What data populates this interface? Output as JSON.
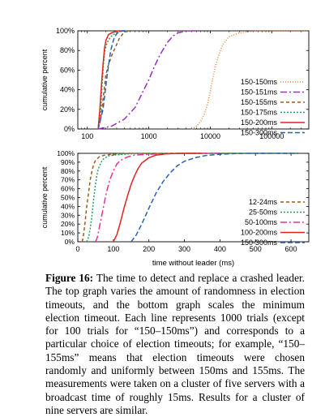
{
  "chart_data": [
    {
      "type": "line",
      "title": "",
      "xlabel": "",
      "ylabel": "cumulative percent",
      "xscale": "log",
      "xlim": [
        70,
        400000
      ],
      "ylim": [
        0,
        100
      ],
      "x_ticks": [
        "100",
        "1000",
        "10000",
        "100000"
      ],
      "y_ticks": [
        "0%",
        "20%",
        "40%",
        "60%",
        "80%",
        "100%"
      ],
      "grid": false,
      "legend": "right",
      "series": [
        {
          "name": "150-150ms",
          "color": "#f0803a",
          "dash": "1,2",
          "x": [
            5000,
            6000,
            7000,
            8000,
            9000,
            10000,
            11000,
            12000,
            14000,
            16000,
            20000,
            30000,
            60000,
            200000,
            400000
          ],
          "y": [
            0,
            3,
            8,
            15,
            25,
            38,
            52,
            63,
            77,
            86,
            94,
            98,
            100,
            100,
            100
          ]
        },
        {
          "name": "150-151ms",
          "color": "#9a2fc0",
          "dash": "8,3,2,3",
          "x": [
            150,
            250,
            400,
            600,
            800,
            1000,
            1200,
            1500,
            2000,
            2500,
            3000,
            4000,
            5000,
            7000
          ],
          "y": [
            0,
            3,
            10,
            22,
            38,
            50,
            62,
            75,
            88,
            95,
            98,
            99.5,
            100,
            100
          ]
        },
        {
          "name": "150-155ms",
          "color": "#9a5a18",
          "dash": "4,3",
          "x": [
            150,
            165,
            180,
            200,
            220,
            250,
            280,
            300,
            330,
            380,
            420,
            500
          ],
          "y": [
            0,
            10,
            30,
            55,
            65,
            75,
            82,
            86,
            92,
            97,
            99,
            100
          ]
        },
        {
          "name": "150-175ms",
          "color": "#22a45a",
          "dash": "2,2",
          "x": [
            150,
            165,
            180,
            190,
            210,
            240,
            280,
            320,
            380,
            450
          ],
          "y": [
            0,
            20,
            60,
            78,
            88,
            94,
            97,
            99,
            100,
            100
          ]
        },
        {
          "name": "150-200ms",
          "color": "#e0241f",
          "dash": "",
          "x": [
            150,
            160,
            170,
            180,
            190,
            200,
            220,
            250,
            280,
            320,
            400
          ],
          "y": [
            0,
            20,
            45,
            65,
            82,
            90,
            96,
            98,
            99,
            100,
            100
          ]
        },
        {
          "name": "150-300ms",
          "color": "#2660b8",
          "dash": "6,3",
          "x": [
            150,
            180,
            210,
            240,
            270,
            300,
            330,
            380,
            450
          ],
          "y": [
            0,
            20,
            55,
            80,
            92,
            97,
            99,
            100,
            100
          ]
        }
      ]
    },
    {
      "type": "line",
      "title": "",
      "xlabel": "time without leader (ms)",
      "ylabel": "cumulative percent",
      "xlim": [
        0,
        650
      ],
      "ylim": [
        0,
        100
      ],
      "x_ticks": [
        "0",
        "100",
        "200",
        "300",
        "400",
        "500",
        "600"
      ],
      "y_ticks": [
        "0%",
        "10%",
        "20%",
        "30%",
        "40%",
        "50%",
        "60%",
        "70%",
        "80%",
        "90%",
        "100%"
      ],
      "grid": false,
      "legend": "right",
      "series": [
        {
          "name": "12-24ms",
          "color": "#9a5a18",
          "dash": "4,3",
          "x": [
            12,
            15,
            20,
            25,
            30,
            35,
            40,
            45,
            50,
            60,
            75,
            100,
            150,
            300,
            620
          ],
          "y": [
            0,
            5,
            20,
            40,
            55,
            70,
            80,
            88,
            92,
            96,
            98,
            99,
            100,
            100,
            100
          ]
        },
        {
          "name": "25-50ms",
          "color": "#22a45a",
          "dash": "2,2",
          "x": [
            25,
            30,
            35,
            40,
            45,
            50,
            55,
            60,
            70,
            85,
            100,
            150,
            300,
            620
          ],
          "y": [
            0,
            5,
            15,
            30,
            50,
            65,
            78,
            85,
            93,
            97,
            98,
            99.5,
            100,
            100
          ]
        },
        {
          "name": "50-100ms",
          "color": "#e2348e",
          "dash": "8,3,2,3",
          "x": [
            50,
            55,
            60,
            70,
            80,
            90,
            100,
            110,
            120,
            140,
            160,
            200,
            300,
            400
          ],
          "y": [
            0,
            5,
            15,
            35,
            55,
            70,
            80,
            88,
            92,
            96,
            98,
            99,
            100,
            100
          ]
        },
        {
          "name": "100-200ms",
          "color": "#e0241f",
          "dash": "",
          "x": [
            100,
            110,
            120,
            130,
            140,
            150,
            160,
            170,
            180,
            200,
            220,
            250,
            300,
            350
          ],
          "y": [
            0,
            8,
            22,
            38,
            52,
            65,
            75,
            83,
            89,
            95,
            98,
            99.5,
            100,
            100
          ]
        },
        {
          "name": "150-300ms",
          "color": "#2660b8",
          "dash": "6,3",
          "x": [
            150,
            165,
            180,
            200,
            220,
            240,
            260,
            280,
            300,
            330,
            360,
            400,
            450,
            500,
            620
          ],
          "y": [
            0,
            8,
            20,
            38,
            55,
            68,
            78,
            86,
            91,
            95,
            97.5,
            99,
            99.8,
            100,
            100
          ]
        }
      ]
    }
  ],
  "caption": {
    "label": "Figure 16:",
    "text": " The time to detect and replace a crashed leader. The top graph varies the amount of randomness in election timeouts, and the bottom graph scales the minimum election timeout. Each line represents 1000 trials (except for 100 trials for “150–150ms”) and corresponds to a particular choice of election timeouts; for example, “150–155ms” means that election timeouts were chosen randomly and uniformly between 150ms and 155ms. The measurements were taken on a cluster of five servers with a broadcast time of roughly 15ms. Results for a cluster of nine servers are similar."
  }
}
